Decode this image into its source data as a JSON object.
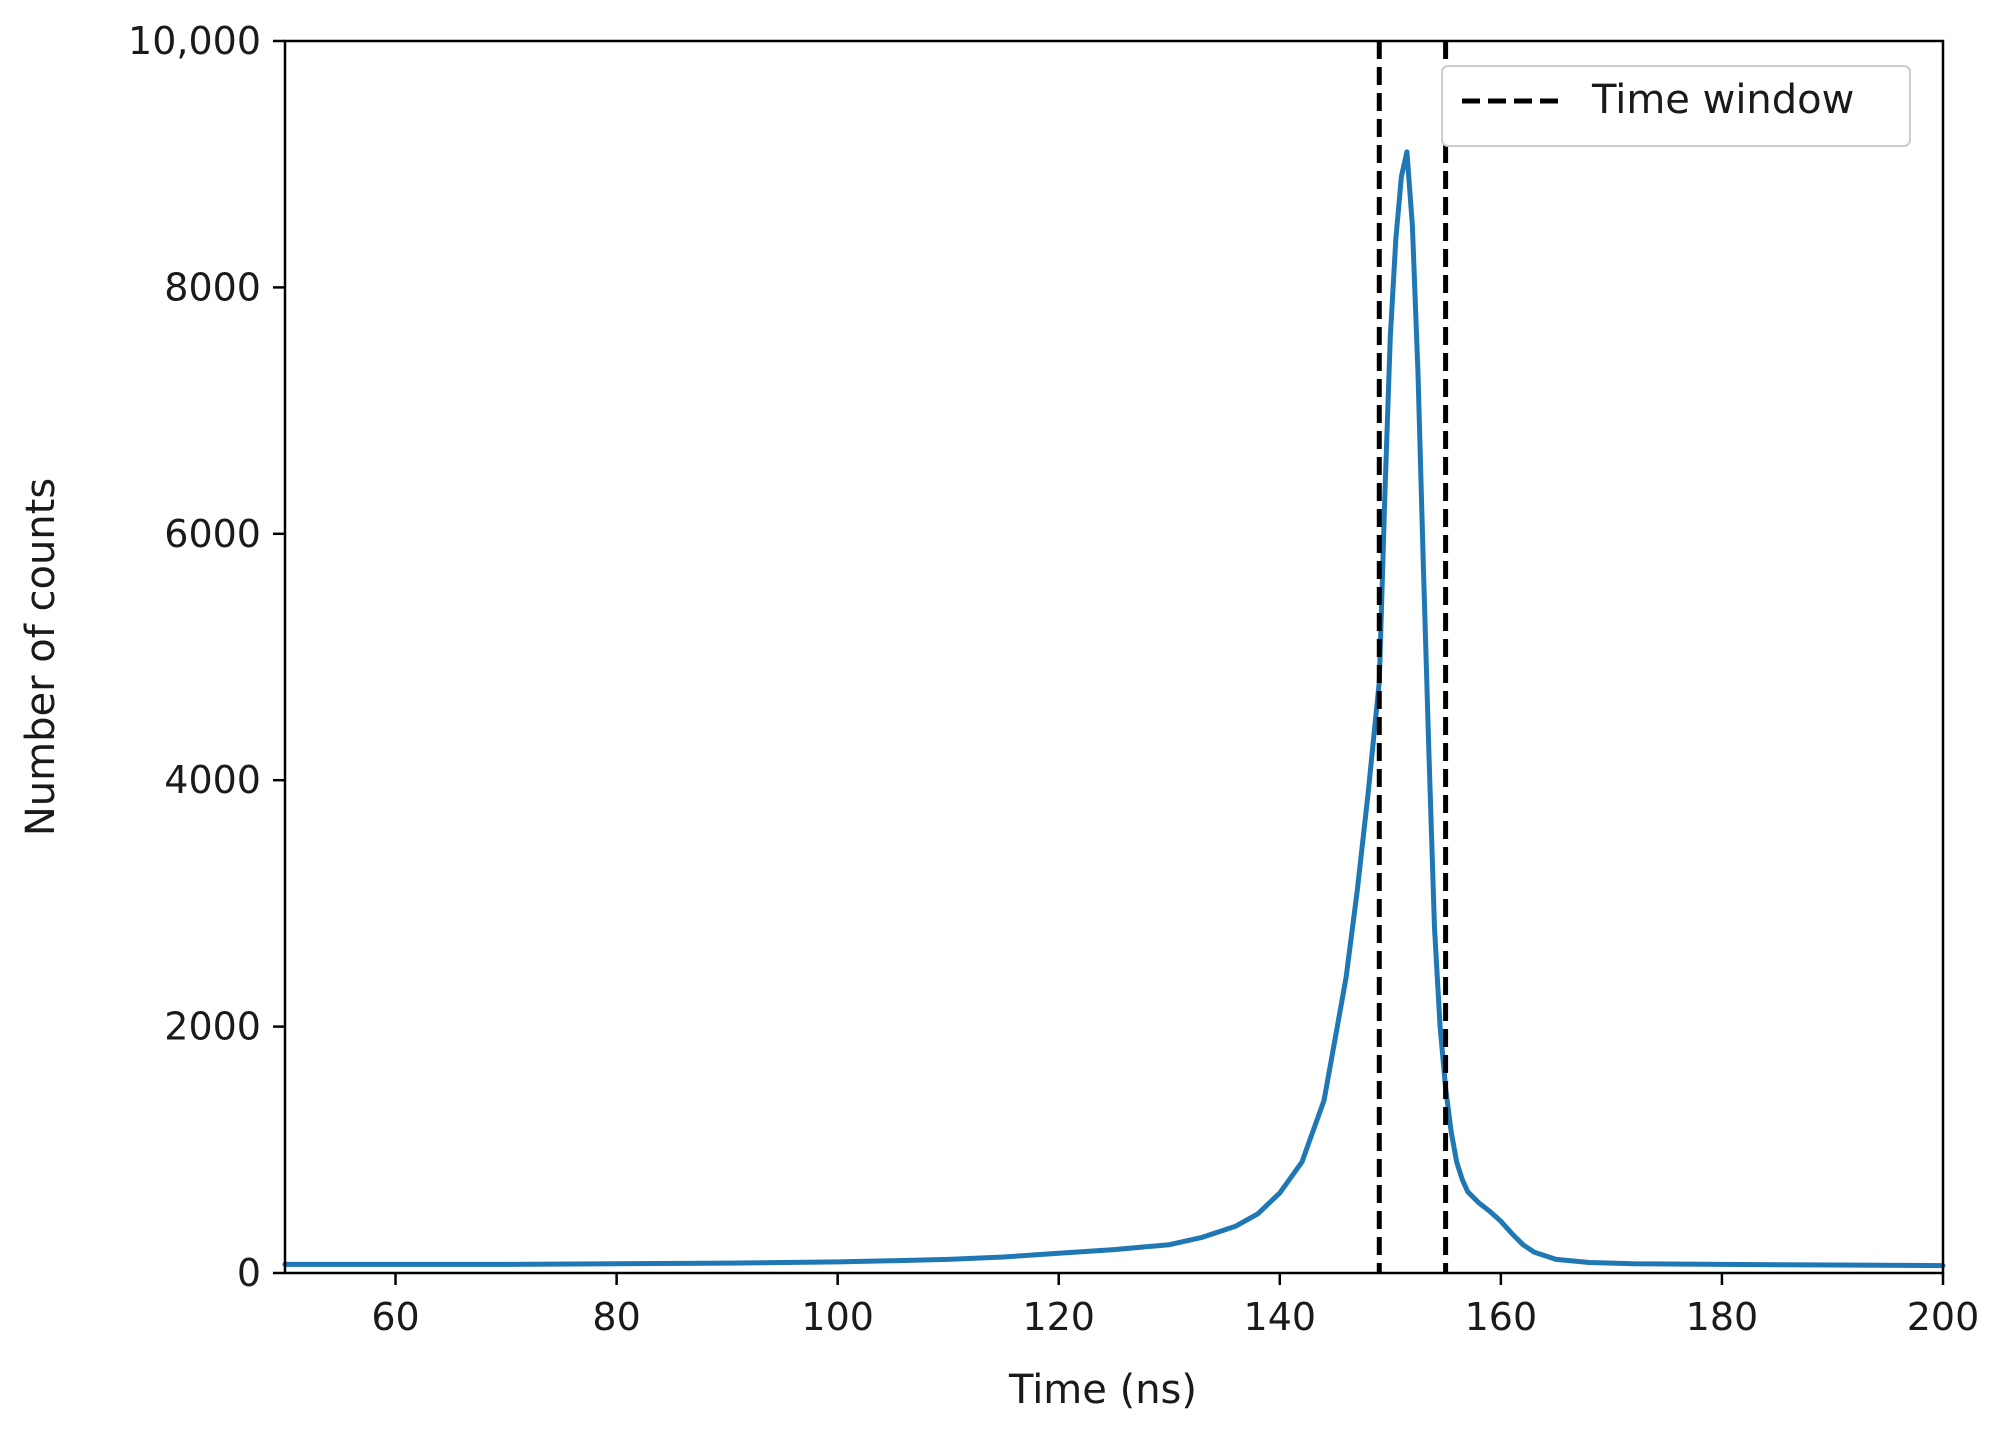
{
  "chart_data": {
    "type": "line",
    "title": "",
    "xlabel": "Time (ns)",
    "ylabel": "Number of counts",
    "xlim": [
      50,
      200
    ],
    "ylim": [
      0,
      10000
    ],
    "x_ticks": [
      60,
      80,
      100,
      120,
      140,
      160,
      180,
      200
    ],
    "x_tick_labels": [
      "60",
      "80",
      "100",
      "120",
      "140",
      "160",
      "180",
      "200"
    ],
    "y_ticks": [
      0,
      2000,
      4000,
      6000,
      8000,
      10000
    ],
    "y_tick_labels": [
      "0",
      "2000",
      "4000",
      "6000",
      "8000",
      "10,000"
    ],
    "grid": false,
    "legend": {
      "position": "top-right",
      "entries": [
        {
          "label": "Time window",
          "style": "dashed",
          "color": "#000000"
        }
      ]
    },
    "series": [
      {
        "color": "#1f77b4",
        "x": [
          50,
          60,
          70,
          80,
          90,
          100,
          105,
          110,
          115,
          120,
          125,
          130,
          133,
          136,
          138,
          140,
          142,
          144,
          145,
          146,
          147,
          148,
          149,
          149.5,
          150,
          150.5,
          151,
          151.5,
          152,
          152.5,
          153,
          153.5,
          154,
          154.5,
          155,
          155.5,
          156,
          156.5,
          157,
          158,
          159,
          160,
          161,
          162,
          163,
          165,
          168,
          172,
          180,
          190,
          200
        ],
        "y": [
          70,
          70,
          70,
          75,
          80,
          90,
          100,
          110,
          130,
          160,
          190,
          230,
          290,
          380,
          480,
          650,
          900,
          1400,
          1900,
          2400,
          3100,
          3900,
          4800,
          6300,
          7600,
          8400,
          8900,
          9100,
          8500,
          7300,
          5700,
          4200,
          2800,
          2000,
          1500,
          1150,
          900,
          760,
          660,
          570,
          500,
          420,
          320,
          230,
          170,
          110,
          85,
          75,
          70,
          65,
          60
        ]
      }
    ],
    "vlines": [
      {
        "x": 149,
        "color": "#000000",
        "style": "dashed"
      },
      {
        "x": 155,
        "color": "#000000",
        "style": "dashed"
      }
    ]
  }
}
